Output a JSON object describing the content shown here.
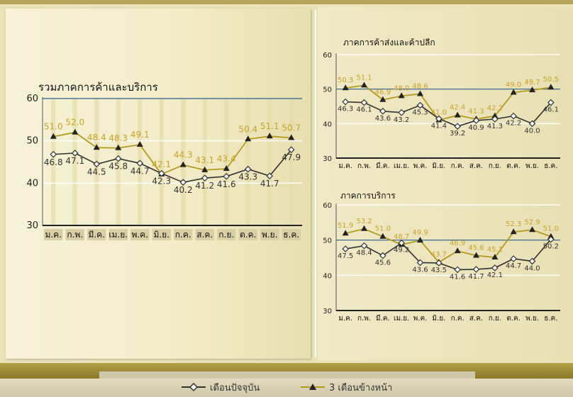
{
  "colors": {
    "current": "#333333",
    "next3": "#b39a1e",
    "label_current": "#333333",
    "label_next3": "#c9a227",
    "ref_line": "#2c5e8a"
  },
  "legend": {
    "current_label": "เดือนปัจจุบัน",
    "next3_label": "3 เดือนข้างหน้า",
    "current_icon": "diamond-marker-icon",
    "next3_icon": "triangle-marker-icon"
  },
  "chart_data": [
    {
      "id": "main",
      "type": "line",
      "title": "รวมภาคการค้าและบริการ",
      "categories": [
        "ม.ค.",
        "ก.พ.",
        "มี.ค.",
        "เม.ย.",
        "พ.ค.",
        "มิ.ย.",
        "ก.ค.",
        "ส.ค.",
        "ก.ย.",
        "ต.ค.",
        "พ.ย.",
        "ธ.ค."
      ],
      "yticks": [
        30,
        40,
        50,
        60
      ],
      "ylim": [
        30,
        60
      ],
      "reference_line": 60,
      "series": [
        {
          "key": "current",
          "values": [
            46.8,
            47.1,
            44.5,
            45.8,
            44.7,
            42.3,
            40.2,
            41.2,
            41.6,
            43.3,
            41.7,
            47.9
          ]
        },
        {
          "key": "next3",
          "values": [
            51.0,
            52.0,
            48.4,
            48.3,
            49.1,
            42.1,
            44.3,
            43.1,
            43.4,
            50.4,
            51.1,
            50.7
          ]
        }
      ]
    },
    {
      "id": "trade",
      "type": "line",
      "title": "ภาคการค้าส่งและค้าปลีก",
      "categories": [
        "ม.ค.",
        "ก.พ.",
        "มี.ค.",
        "เม.ย.",
        "พ.ค.",
        "มิ.ย.",
        "ก.ค.",
        "ส.ค.",
        "ก.ย.",
        "ต.ค.",
        "พ.ย.",
        "ธ.ค."
      ],
      "yticks": [
        30,
        40,
        50,
        60
      ],
      "ylim": [
        30,
        60
      ],
      "reference_line": 50,
      "series": [
        {
          "key": "current",
          "values": [
            46.3,
            46.1,
            43.6,
            43.2,
            45.3,
            41.4,
            39.2,
            40.9,
            41.3,
            42.2,
            40.0,
            46.1
          ]
        },
        {
          "key": "next3",
          "values": [
            50.3,
            51.1,
            46.9,
            48.0,
            48.6,
            41.0,
            42.4,
            41.3,
            42.2,
            49.0,
            49.7,
            50.5
          ]
        }
      ]
    },
    {
      "id": "service",
      "type": "line",
      "title": "ภาคการบริการ",
      "categories": [
        "ม.ค.",
        "ก.พ.",
        "มี.ค.",
        "เม.ย.",
        "พ.ค.",
        "มิ.ย.",
        "ก.ค.",
        "ส.ค.",
        "ก.ย.",
        "ต.ค.",
        "พ.ย.",
        "ธ.ค."
      ],
      "yticks": [
        30,
        40,
        50,
        60
      ],
      "ylim": [
        30,
        60
      ],
      "reference_line": 50,
      "series": [
        {
          "key": "current",
          "values": [
            47.5,
            48.4,
            45.6,
            49.2,
            43.6,
            43.5,
            41.6,
            41.7,
            42.1,
            44.7,
            44.0,
            50.2
          ]
        },
        {
          "key": "next3",
          "values": [
            51.9,
            53.2,
            51.0,
            48.7,
            49.9,
            43.7,
            46.9,
            45.6,
            45.1,
            52.3,
            52.9,
            51.0
          ]
        }
      ]
    }
  ]
}
